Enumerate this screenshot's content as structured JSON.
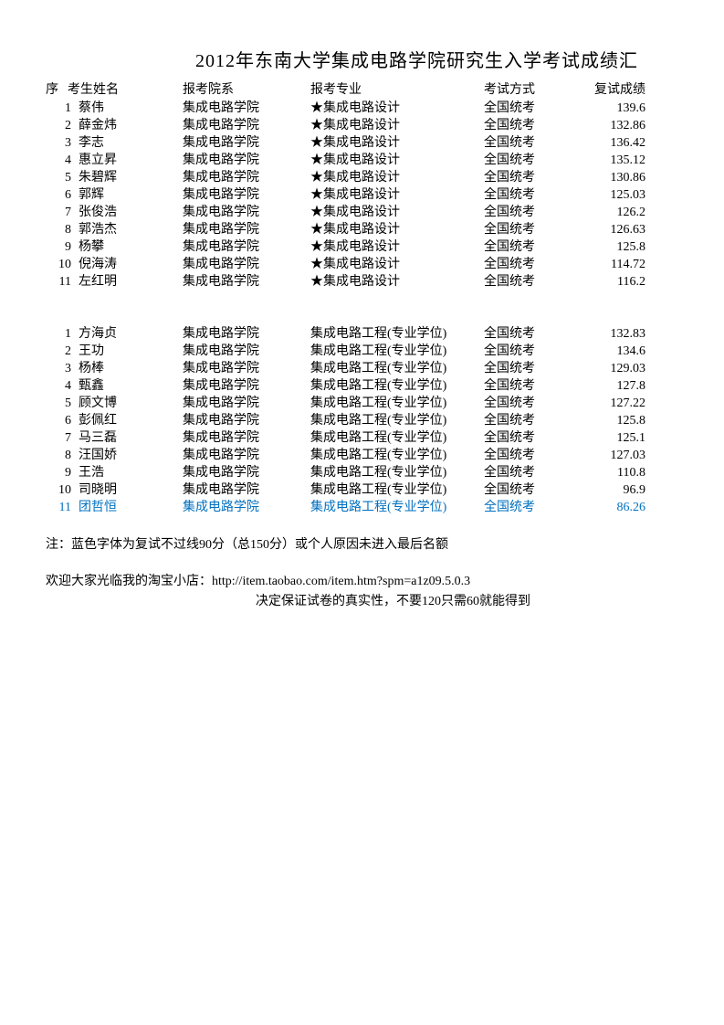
{
  "title": "2012年东南大学集成电路学院研究生入学考试成绩汇",
  "headers": {
    "seq": "序",
    "name": "考生姓名",
    "dept": "报考院系",
    "major": "报考专业",
    "method": "考试方式",
    "score": "复试成绩"
  },
  "group1": [
    {
      "seq": "1",
      "name": "蔡伟",
      "dept": "集成电路学院",
      "major": "★集成电路设计",
      "method": "全国统考",
      "score": "139.6"
    },
    {
      "seq": "2",
      "name": "薛金炜",
      "dept": "集成电路学院",
      "major": "★集成电路设计",
      "method": "全国统考",
      "score": "132.86"
    },
    {
      "seq": "3",
      "name": "李志",
      "dept": "集成电路学院",
      "major": "★集成电路设计",
      "method": "全国统考",
      "score": "136.42"
    },
    {
      "seq": "4",
      "name": "惠立昇",
      "dept": "集成电路学院",
      "major": "★集成电路设计",
      "method": "全国统考",
      "score": "135.12"
    },
    {
      "seq": "5",
      "name": "朱碧辉",
      "dept": "集成电路学院",
      "major": "★集成电路设计",
      "method": "全国统考",
      "score": "130.86"
    },
    {
      "seq": "6",
      "name": "郭辉",
      "dept": "集成电路学院",
      "major": "★集成电路设计",
      "method": "全国统考",
      "score": "125.03"
    },
    {
      "seq": "7",
      "name": "张俊浩",
      "dept": "集成电路学院",
      "major": "★集成电路设计",
      "method": "全国统考",
      "score": "126.2"
    },
    {
      "seq": "8",
      "name": "郭浩杰",
      "dept": "集成电路学院",
      "major": "★集成电路设计",
      "method": "全国统考",
      "score": "126.63"
    },
    {
      "seq": "9",
      "name": "杨攀",
      "dept": "集成电路学院",
      "major": "★集成电路设计",
      "method": "全国统考",
      "score": "125.8"
    },
    {
      "seq": "10",
      "name": "倪海涛",
      "dept": "集成电路学院",
      "major": "★集成电路设计",
      "method": "全国统考",
      "score": "114.72"
    },
    {
      "seq": "11",
      "name": "左红明",
      "dept": "集成电路学院",
      "major": "★集成电路设计",
      "method": "全国统考",
      "score": "116.2"
    }
  ],
  "group2": [
    {
      "seq": "1",
      "name": "方海贞",
      "dept": "集成电路学院",
      "major": "集成电路工程(专业学位)",
      "method": "全国统考",
      "score": "132.83"
    },
    {
      "seq": "2",
      "name": "王功",
      "dept": "集成电路学院",
      "major": "集成电路工程(专业学位)",
      "method": "全国统考",
      "score": "134.6"
    },
    {
      "seq": "3",
      "name": "杨棒",
      "dept": "集成电路学院",
      "major": "集成电路工程(专业学位)",
      "method": "全国统考",
      "score": "129.03"
    },
    {
      "seq": "4",
      "name": "甄鑫",
      "dept": "集成电路学院",
      "major": "集成电路工程(专业学位)",
      "method": "全国统考",
      "score": "127.8"
    },
    {
      "seq": "5",
      "name": "顾文博",
      "dept": "集成电路学院",
      "major": "集成电路工程(专业学位)",
      "method": "全国统考",
      "score": "127.22"
    },
    {
      "seq": "6",
      "name": "彭佩红",
      "dept": "集成电路学院",
      "major": "集成电路工程(专业学位)",
      "method": "全国统考",
      "score": "125.8"
    },
    {
      "seq": "7",
      "name": "马三磊",
      "dept": "集成电路学院",
      "major": "集成电路工程(专业学位)",
      "method": "全国统考",
      "score": "125.1"
    },
    {
      "seq": "8",
      "name": "汪国娇",
      "dept": "集成电路学院",
      "major": "集成电路工程(专业学位)",
      "method": "全国统考",
      "score": "127.03"
    },
    {
      "seq": "9",
      "name": "王浩",
      "dept": "集成电路学院",
      "major": "集成电路工程(专业学位)",
      "method": "全国统考",
      "score": "110.8"
    },
    {
      "seq": "10",
      "name": "司晓明",
      "dept": "集成电路学院",
      "major": "集成电路工程(专业学位)",
      "method": "全国统考",
      "score": "96.9"
    },
    {
      "seq": "11",
      "name": "团哲恒",
      "dept": "集成电路学院",
      "major": "集成电路工程(专业学位)",
      "method": "全国统考",
      "score": "86.26",
      "blue": true
    }
  ],
  "note": "注：蓝色字体为复试不过线90分（总150分）或个人原因未进入最后名额",
  "promo1": "欢迎大家光临我的淘宝小店：http://item.taobao.com/item.htm?spm=a1z09.5.0.3",
  "promo2": "决定保证试卷的真实性，不要120只需60就能得到",
  "colors": {
    "blue": "#0070c0",
    "text": "#000000",
    "background": "#ffffff"
  }
}
